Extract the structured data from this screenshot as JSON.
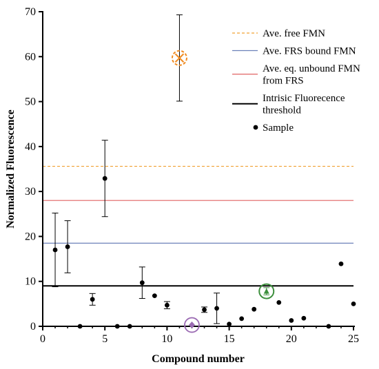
{
  "chart_data": {
    "type": "scatter",
    "xlabel": "Compound number",
    "ylabel": "Normalized Fluorescence",
    "xlim": [
      0,
      25
    ],
    "ylim": [
      0,
      70
    ],
    "xticks": [
      0,
      5,
      10,
      15,
      20,
      25
    ],
    "yticks": [
      0,
      10,
      20,
      30,
      40,
      50,
      60,
      70
    ],
    "grid": false,
    "legend_position": "top-right",
    "reference_lines": [
      {
        "name": "Ave. free FMN",
        "y": 35.6,
        "color": "#f0a030",
        "dashed": true
      },
      {
        "name": "Ave. FRS bound FMN",
        "y": 18.5,
        "color": "#6a7fb8",
        "dashed": false
      },
      {
        "name": "Ave. eq. unbound FMN from FRS",
        "y": 28.0,
        "color": "#e06060",
        "dashed": false
      },
      {
        "name": "Intrisic Fluorecence threshold",
        "y": 9.0,
        "color": "#000000",
        "dashed": false
      }
    ],
    "legend": [
      {
        "lines": [
          "Ave. free FMN"
        ],
        "kind": "line",
        "ref": 0
      },
      {
        "lines": [
          "Ave. FRS bound FMN"
        ],
        "kind": "line",
        "ref": 1
      },
      {
        "lines": [
          "Ave. eq. unbound FMN",
          "from FRS"
        ],
        "kind": "line",
        "ref": 2
      },
      {
        "lines": [
          "Intrisic Fluorecence",
          "threshold"
        ],
        "kind": "line",
        "ref": 3
      },
      {
        "lines": [
          "Sample"
        ],
        "kind": "marker"
      }
    ],
    "series": [
      {
        "name": "Sample",
        "points": [
          {
            "x": 1,
            "y": 17.0,
            "err": 8.2
          },
          {
            "x": 2,
            "y": 17.7,
            "err": 5.8
          },
          {
            "x": 3,
            "y": 0.0
          },
          {
            "x": 4,
            "y": 6.0,
            "err": 1.3
          },
          {
            "x": 5,
            "y": 32.9,
            "err": 8.5
          },
          {
            "x": 6,
            "y": 0.0
          },
          {
            "x": 7,
            "y": 0.0
          },
          {
            "x": 8,
            "y": 9.7,
            "err": 3.5
          },
          {
            "x": 9,
            "y": 6.8
          },
          {
            "x": 10,
            "y": 4.7,
            "err": 0.8
          },
          {
            "x": 13,
            "y": 3.7,
            "err": 0.6
          },
          {
            "x": 14,
            "y": 4.0,
            "err": 3.4
          },
          {
            "x": 15,
            "y": 0.5
          },
          {
            "x": 16,
            "y": 1.7
          },
          {
            "x": 17,
            "y": 3.8
          },
          {
            "x": 19,
            "y": 5.3
          },
          {
            "x": 20,
            "y": 1.3
          },
          {
            "x": 21,
            "y": 1.8
          },
          {
            "x": 23,
            "y": 0.0
          },
          {
            "x": 24,
            "y": 13.9
          },
          {
            "x": 25,
            "y": 5.0
          }
        ]
      }
    ],
    "highlighted_points": [
      {
        "x": 11,
        "y": 59.7,
        "err": 9.6,
        "color": "#f08a20",
        "marker": "x-in-dashed-circle"
      },
      {
        "x": 12,
        "y": 0.3,
        "color": "#9b6bb3",
        "marker": "diamond-in-circle"
      },
      {
        "x": 18,
        "y": 7.8,
        "err": 0.8,
        "color": "#3d8f3d",
        "marker": "triangle-in-circle"
      }
    ]
  }
}
